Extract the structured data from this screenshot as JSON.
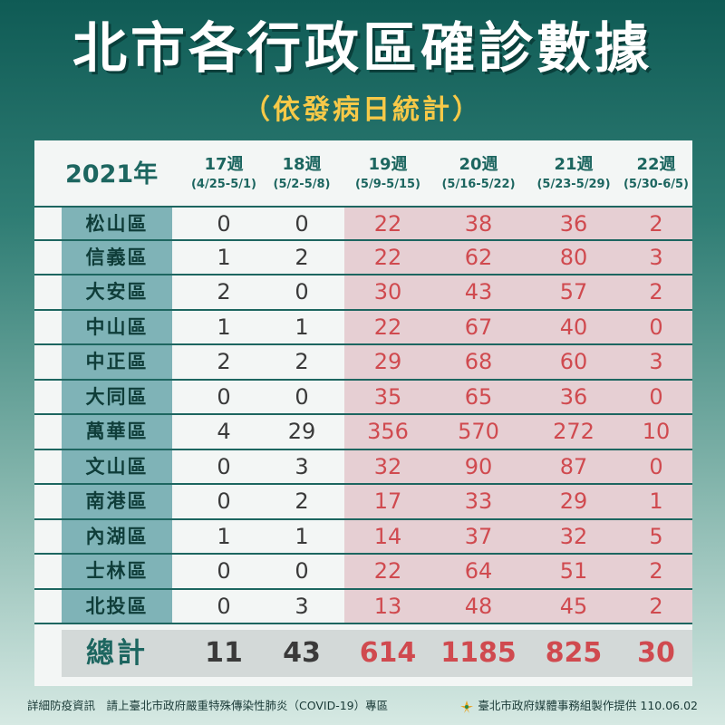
{
  "title": "北市各行政區確診數據",
  "subtitle": "（依發病日統計）",
  "year_label": "2021年",
  "weeks": [
    {
      "week": "17週",
      "range": "(4/25-5/1)"
    },
    {
      "week": "18週",
      "range": "(5/2-5/8)"
    },
    {
      "week": "19週",
      "range": "(5/9-5/15)"
    },
    {
      "week": "20週",
      "range": "(5/16-5/22)"
    },
    {
      "week": "21週",
      "range": "(5/23-5/29)"
    },
    {
      "week": "22週",
      "range": "(5/30-6/5)"
    }
  ],
  "rows": [
    {
      "district": "松山區",
      "values": [
        "0",
        "0",
        "22",
        "38",
        "36",
        "2"
      ]
    },
    {
      "district": "信義區",
      "values": [
        "1",
        "2",
        "22",
        "62",
        "80",
        "3"
      ]
    },
    {
      "district": "大安區",
      "values": [
        "2",
        "0",
        "30",
        "43",
        "57",
        "2"
      ]
    },
    {
      "district": "中山區",
      "values": [
        "1",
        "1",
        "22",
        "67",
        "40",
        "0"
      ]
    },
    {
      "district": "中正區",
      "values": [
        "2",
        "2",
        "29",
        "68",
        "60",
        "3"
      ]
    },
    {
      "district": "大同區",
      "values": [
        "0",
        "0",
        "35",
        "65",
        "36",
        "0"
      ]
    },
    {
      "district": "萬華區",
      "values": [
        "4",
        "29",
        "356",
        "570",
        "272",
        "10"
      ]
    },
    {
      "district": "文山區",
      "values": [
        "0",
        "3",
        "32",
        "90",
        "87",
        "0"
      ]
    },
    {
      "district": "南港區",
      "values": [
        "0",
        "2",
        "17",
        "33",
        "29",
        "1"
      ]
    },
    {
      "district": "內湖區",
      "values": [
        "1",
        "1",
        "14",
        "37",
        "32",
        "5"
      ]
    },
    {
      "district": "士林區",
      "values": [
        "0",
        "0",
        "22",
        "64",
        "51",
        "2"
      ]
    },
    {
      "district": "北投區",
      "values": [
        "0",
        "3",
        "13",
        "48",
        "45",
        "2"
      ]
    }
  ],
  "total": {
    "label": "總計",
    "values": [
      "11",
      "43",
      "614",
      "1185",
      "825",
      "30"
    ]
  },
  "footer": {
    "left": "詳細防疫資訊　請上臺北市政府嚴重特殊傳染性肺炎（COVID-19）專區",
    "right": "臺北市政府媒體事務組製作提供 110.06.02"
  },
  "colors": {
    "old_value": "#3a3a3a",
    "new_value": "#d04a4f",
    "district_bg": "#7fb3b7",
    "highlight_bg": "#e6cfd3",
    "accent": "#1d6660",
    "subtitle": "#f7c948"
  },
  "icons": {
    "footer_logo": "taipei-logo-icon"
  }
}
